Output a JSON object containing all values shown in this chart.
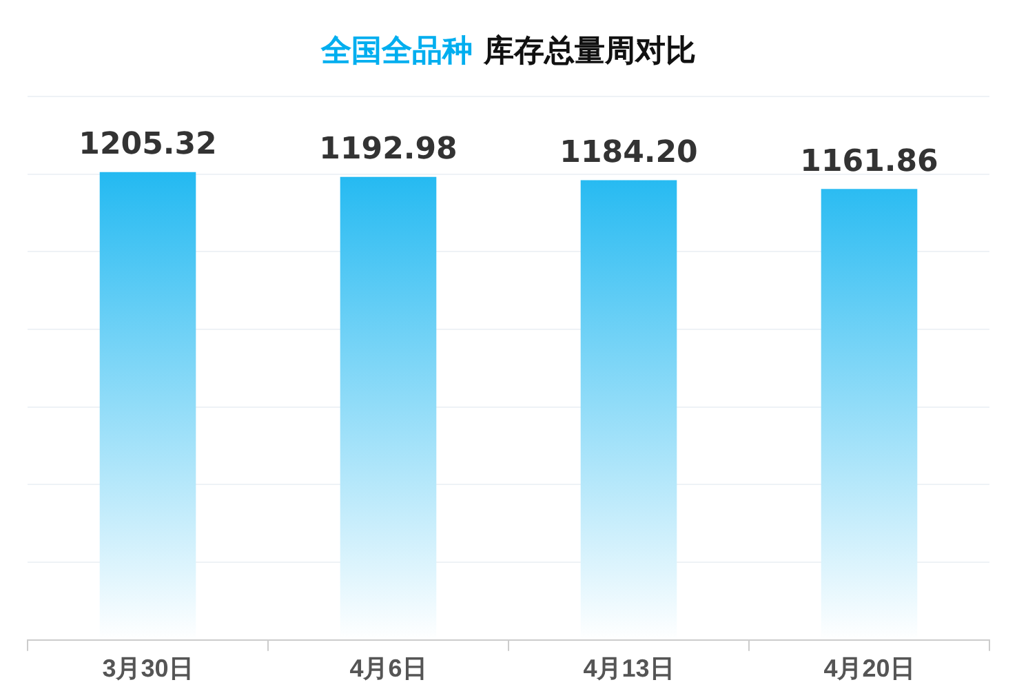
{
  "chart_data": {
    "type": "bar",
    "title": "全国全品种 库存总量周对比",
    "categories": [
      "3月30日",
      "4月6日",
      "4月13日",
      "4月20日"
    ],
    "values": [
      1205.32,
      1192.98,
      1184.2,
      1161.86
    ],
    "value_labels": [
      "1205.32",
      "1192.98",
      "1184.20",
      "1161.86"
    ],
    "color": "#00aeef",
    "grid": "y",
    "tick_labels": "x",
    "legend": false
  }
}
